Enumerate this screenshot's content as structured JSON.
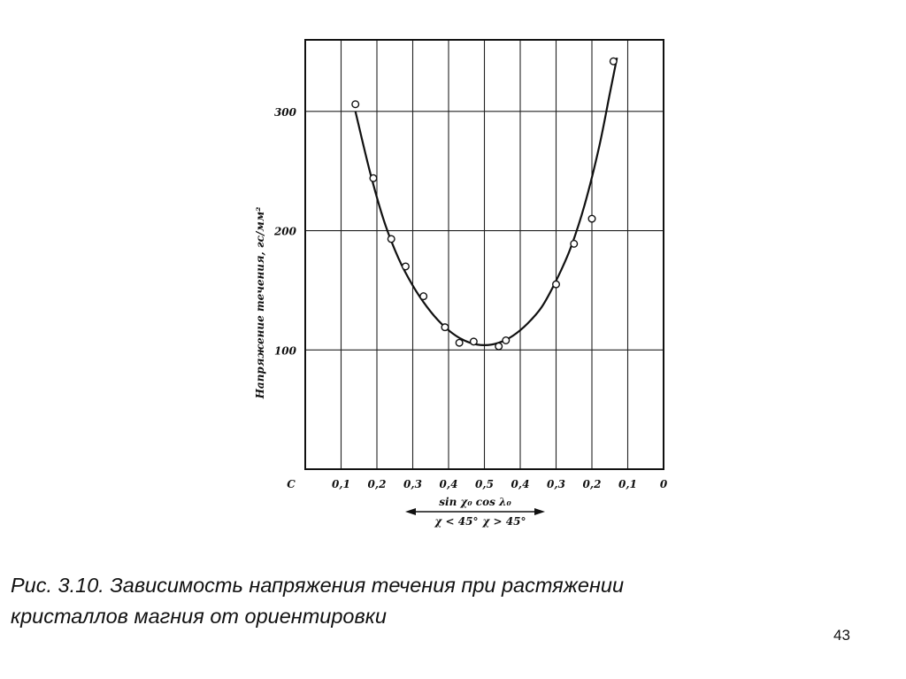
{
  "slide": {
    "caption_line_1": "Рис. 3.10. Зависимость напряжения течения при растяжении",
    "caption_line_2": "кристаллов магния от ориентировки",
    "page_number": "43"
  },
  "chart_data": {
    "type": "scatter",
    "title": "",
    "ylabel": "Напряжение течения, гс/мм²",
    "xlabel_line_1": "sin χ₀  cos λ₀",
    "xlabel_left": "χ < 45°",
    "xlabel_right": "χ > 45°",
    "ylim": [
      0,
      360
    ],
    "xlim": [
      0,
      1.0
    ],
    "x_axis_note": "position runs left→right: sin χ₀ rises 0→0.5, then cos λ₀ falls 0.5→0",
    "xtick_labels": [
      "C",
      "0,1",
      "0,2",
      "0,3",
      "0,4",
      "0,5",
      "0,4",
      "0,3",
      "0,2",
      "0,1",
      "0"
    ],
    "ytick_labels": [
      "100",
      "200",
      "300"
    ],
    "ytick_values": [
      100,
      200,
      300
    ],
    "grid": true,
    "series": [
      {
        "kind": "points",
        "x": [
          0.14,
          0.19,
          0.24,
          0.28,
          0.33,
          0.39,
          0.43,
          0.47,
          0.54,
          0.56,
          0.7,
          0.75,
          0.8,
          0.86
        ],
        "y": [
          306,
          244,
          193,
          170,
          145,
          119,
          106,
          107,
          103,
          108,
          155,
          189,
          210,
          342
        ]
      },
      {
        "kind": "curve",
        "x": [
          0.14,
          0.18,
          0.22,
          0.26,
          0.3,
          0.34,
          0.38,
          0.42,
          0.46,
          0.5,
          0.54,
          0.58,
          0.62,
          0.66,
          0.7,
          0.74,
          0.78,
          0.82,
          0.85,
          0.87
        ],
        "y": [
          300,
          250,
          208,
          177,
          154,
          136,
          122,
          112,
          106,
          104,
          106,
          112,
          122,
          136,
          158,
          185,
          222,
          270,
          315,
          345
        ]
      }
    ]
  }
}
